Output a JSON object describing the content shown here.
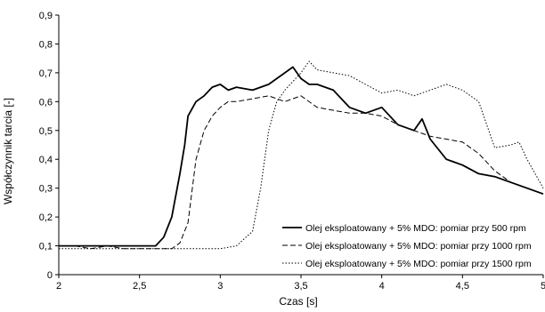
{
  "chart_data": {
    "type": "line",
    "title": "",
    "xlabel": "Czas [s]",
    "ylabel": "Współczynnik tarcia [-]",
    "xlim": [
      2,
      5
    ],
    "ylim": [
      0,
      0.9
    ],
    "x_ticks": [
      "2",
      "2,5",
      "3",
      "3,5",
      "4",
      "4,5",
      "5"
    ],
    "y_ticks": [
      "0",
      "0,1",
      "0,2",
      "0,3",
      "0,4",
      "0,5",
      "0,6",
      "0,7",
      "0,8",
      "0,9"
    ],
    "grid": false,
    "legend_position": "lower-right",
    "series": [
      {
        "name": "Olej eksploatowany + 5% MDO: pomiar przy 500 rpm",
        "style": "solid",
        "color": "#000000",
        "x": [
          2.0,
          2.1,
          2.2,
          2.3,
          2.4,
          2.5,
          2.6,
          2.65,
          2.7,
          2.75,
          2.78,
          2.8,
          2.85,
          2.9,
          2.95,
          3.0,
          3.05,
          3.1,
          3.2,
          3.3,
          3.4,
          3.45,
          3.5,
          3.55,
          3.6,
          3.7,
          3.8,
          3.9,
          4.0,
          4.1,
          4.2,
          4.25,
          4.3,
          4.4,
          4.5,
          4.6,
          4.7,
          4.8,
          4.9,
          5.0
        ],
        "y": [
          0.1,
          0.1,
          0.1,
          0.1,
          0.1,
          0.1,
          0.1,
          0.13,
          0.2,
          0.35,
          0.45,
          0.55,
          0.6,
          0.62,
          0.65,
          0.66,
          0.64,
          0.65,
          0.64,
          0.66,
          0.7,
          0.72,
          0.68,
          0.66,
          0.66,
          0.64,
          0.58,
          0.56,
          0.58,
          0.52,
          0.5,
          0.54,
          0.47,
          0.4,
          0.38,
          0.35,
          0.34,
          0.32,
          0.3,
          0.28
        ]
      },
      {
        "name": "Olej eksploatowany + 5% MDO: pomiar przy 1000 rpm",
        "style": "dashed",
        "color": "#000000",
        "x": [
          2.0,
          2.1,
          2.2,
          2.3,
          2.4,
          2.5,
          2.6,
          2.7,
          2.75,
          2.8,
          2.85,
          2.9,
          2.95,
          3.0,
          3.05,
          3.1,
          3.2,
          3.3,
          3.4,
          3.5,
          3.6,
          3.7,
          3.8,
          3.9,
          4.0,
          4.1,
          4.2,
          4.3,
          4.4,
          4.5,
          4.6,
          4.7,
          4.8,
          4.9,
          5.0
        ],
        "y": [
          0.1,
          0.1,
          0.09,
          0.1,
          0.09,
          0.09,
          0.09,
          0.09,
          0.11,
          0.18,
          0.4,
          0.5,
          0.55,
          0.58,
          0.6,
          0.6,
          0.61,
          0.62,
          0.6,
          0.62,
          0.58,
          0.57,
          0.56,
          0.56,
          0.55,
          0.52,
          0.5,
          0.48,
          0.47,
          0.46,
          0.42,
          0.36,
          0.32,
          0.3,
          0.28
        ]
      },
      {
        "name": "Olej eksploatowany + 5% MDO: pomiar przy 1500 rpm",
        "style": "dotted",
        "color": "#000000",
        "x": [
          2.0,
          2.2,
          2.4,
          2.6,
          2.8,
          3.0,
          3.1,
          3.2,
          3.25,
          3.3,
          3.35,
          3.4,
          3.5,
          3.55,
          3.6,
          3.7,
          3.8,
          3.9,
          4.0,
          4.1,
          4.2,
          4.3,
          4.4,
          4.5,
          4.6,
          4.7,
          4.8,
          4.85,
          4.9,
          5.0
        ],
        "y": [
          0.09,
          0.09,
          0.09,
          0.09,
          0.09,
          0.09,
          0.1,
          0.15,
          0.3,
          0.5,
          0.6,
          0.64,
          0.7,
          0.74,
          0.71,
          0.7,
          0.69,
          0.66,
          0.63,
          0.64,
          0.62,
          0.64,
          0.66,
          0.64,
          0.6,
          0.44,
          0.45,
          0.46,
          0.4,
          0.3
        ]
      }
    ]
  }
}
